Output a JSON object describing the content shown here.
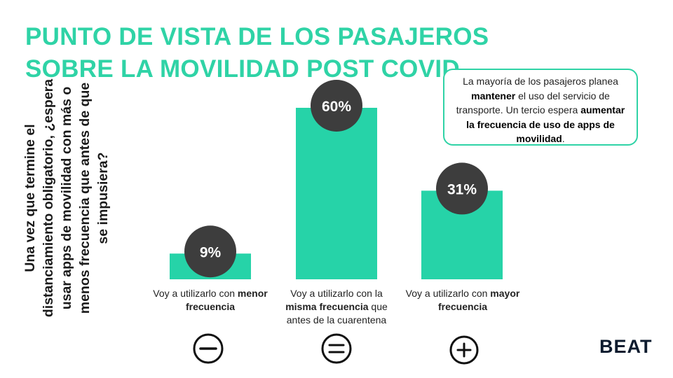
{
  "title": "PUNTO DE VISTA DE LOS PASAJEROS SOBRE LA MOVILIDAD POST COVID",
  "question": "Una vez que termine el distanciamiento obligatorio, ¿espera usar apps de movilidad con más o menos frecuencia que antes de que se impusiera?",
  "callout": {
    "p1": "La mayoría de los pasajeros planea ",
    "b1": "mantener",
    "p2": " el uso del servicio de transporte. Un tercio espera ",
    "b2": "aumentar la frecuencia de uso de apps de movilidad",
    "p3": "."
  },
  "labels": [
    {
      "pre": "Voy a utilizarlo con ",
      "bold": "menor frecuencia",
      "post": ""
    },
    {
      "pre": "Voy a utilizarlo con la ",
      "bold": "misma frecuencia",
      "post": " que antes de la cuarentena"
    },
    {
      "pre": "Voy a utilizarlo con ",
      "bold": "mayor frecuencia",
      "post": ""
    }
  ],
  "icons": [
    "minus-circle-icon",
    "equals-circle-icon",
    "plus-circle-icon"
  ],
  "logo": "BEAT",
  "colors": {
    "accent": "#2fd3a6",
    "bar": "#26d3a8",
    "badge": "#3d3d3d",
    "logo": "#0d1b2e"
  },
  "chart_data": {
    "type": "bar",
    "categories": [
      "menor frecuencia",
      "misma frecuencia",
      "mayor frecuencia"
    ],
    "values": [
      9,
      60,
      31
    ],
    "data_labels": [
      "9%",
      "60%",
      "31%"
    ],
    "ylim": [
      0,
      60
    ],
    "grid": false,
    "legend": "none"
  }
}
